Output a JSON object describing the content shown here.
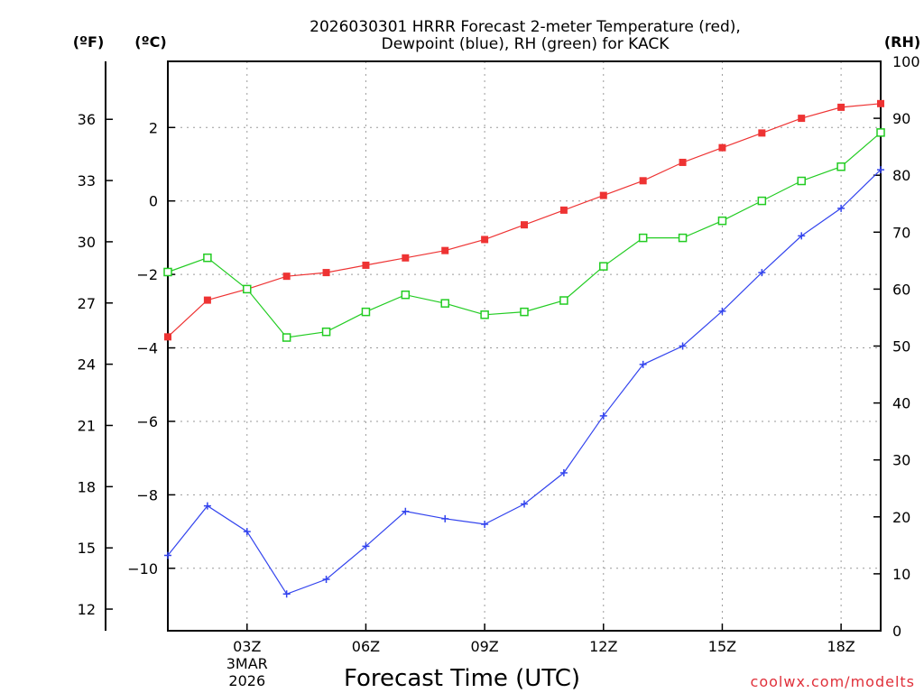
{
  "chart_data": {
    "type": "line",
    "title_lines": [
      "2026030301 HRRR Forecast 2-meter Temperature (red),",
      "Dewpoint (blue), RH (green) for KACK"
    ],
    "units": {
      "f": "(ºF)",
      "c": "(ºC)",
      "rh": "(RH)"
    },
    "xlabel": "Forecast Time (UTC)",
    "x_range": [
      1,
      19
    ],
    "x_ticks": [
      {
        "x": 3,
        "label": "03Z",
        "date_lines": [
          "3MAR",
          "2026"
        ]
      },
      {
        "x": 6,
        "label": "06Z"
      },
      {
        "x": 9,
        "label": "09Z"
      },
      {
        "x": 12,
        "label": "12Z"
      },
      {
        "x": 15,
        "label": "15Z"
      },
      {
        "x": 18,
        "label": "18Z"
      }
    ],
    "axes": {
      "celsius": {
        "range": [
          -11.7,
          3.8
        ],
        "ticks": [
          2,
          0,
          -2,
          -4,
          -6,
          -8,
          -10
        ]
      },
      "fahrenheit": {
        "range": [
          10.94,
          38.84
        ],
        "ticks": [
          36,
          33,
          30,
          27,
          24,
          21,
          18,
          15,
          12
        ]
      },
      "rh": {
        "range": [
          0,
          100
        ],
        "ticks": [
          100,
          90,
          80,
          70,
          60,
          50,
          40,
          30,
          20,
          10,
          0
        ]
      }
    },
    "x": [
      1,
      2,
      3,
      4,
      5,
      6,
      7,
      8,
      9,
      10,
      11,
      12,
      13,
      14,
      15,
      16,
      17,
      18,
      19
    ],
    "series": [
      {
        "name": "Temperature",
        "axis": "celsius",
        "color": "#ee3333",
        "marker": "filled-square",
        "values": [
          -3.7,
          -2.7,
          -2.4,
          -2.05,
          -1.95,
          -1.75,
          -1.55,
          -1.35,
          -1.05,
          -0.65,
          -0.25,
          0.15,
          0.55,
          1.05,
          1.45,
          1.85,
          2.25,
          2.55,
          2.65
        ]
      },
      {
        "name": "Dewpoint",
        "axis": "celsius",
        "color": "#3344ee",
        "marker": "plus",
        "values": [
          -9.65,
          -8.3,
          -9.0,
          -10.7,
          -10.3,
          -9.4,
          -8.45,
          -8.65,
          -8.8,
          -8.25,
          -7.4,
          -5.85,
          -4.45,
          -3.95,
          -3.0,
          -1.95,
          -0.95,
          -0.2,
          0.85
        ]
      },
      {
        "name": "Relative Humidity",
        "axis": "rh",
        "color": "#22cc22",
        "marker": "open-square",
        "values": [
          63,
          65.5,
          60,
          51.5,
          52.5,
          56,
          59,
          57.5,
          55.5,
          56,
          58,
          64,
          69,
          69,
          72,
          75.5,
          79,
          81.5,
          87.5
        ]
      }
    ],
    "credit": "coolwx.com/modelts"
  }
}
